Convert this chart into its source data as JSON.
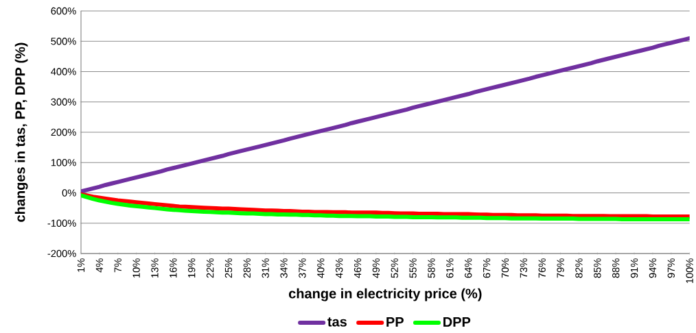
{
  "chart_data": {
    "type": "line",
    "xlabel": "change in electricity price (%)",
    "ylabel": "changes in tas, PP, DPP (%)",
    "categories": [
      "1%",
      null,
      null,
      "4%",
      null,
      null,
      "7%",
      null,
      null,
      "10%",
      null,
      null,
      "13%",
      null,
      null,
      "16%",
      null,
      null,
      "19%",
      null,
      null,
      "22%",
      null,
      null,
      "25%",
      null,
      null,
      "28%",
      null,
      null,
      "31%",
      null,
      null,
      "34%",
      null,
      null,
      "37%",
      null,
      null,
      "40%",
      null,
      null,
      "43%",
      null,
      null,
      "46%",
      null,
      null,
      "49%",
      null,
      null,
      "52%",
      null,
      null,
      "55%",
      null,
      null,
      "58%",
      null,
      null,
      "61%",
      null,
      null,
      "64%",
      null,
      null,
      "67%",
      null,
      null,
      "70%",
      null,
      null,
      "73%",
      null,
      null,
      "76%",
      null,
      null,
      "79%",
      null,
      null,
      "82%",
      null,
      null,
      "85%",
      null,
      null,
      "88%",
      null,
      null,
      "91%",
      null,
      null,
      "94%",
      null,
      null,
      "97%",
      null,
      null,
      "100%"
    ],
    "series": [
      {
        "name": "tas",
        "color": "#7030a0",
        "values": [
          5,
          10,
          15,
          20,
          26,
          31,
          36,
          41,
          46,
          51,
          56,
          61,
          66,
          71,
          77,
          82,
          87,
          92,
          97,
          102,
          107,
          112,
          117,
          122,
          128,
          133,
          138,
          143,
          148,
          153,
          158,
          163,
          168,
          173,
          179,
          184,
          189,
          194,
          199,
          204,
          209,
          214,
          219,
          224,
          230,
          235,
          240,
          245,
          250,
          255,
          260,
          265,
          270,
          275,
          281,
          286,
          291,
          296,
          301,
          306,
          311,
          316,
          321,
          326,
          332,
          337,
          342,
          347,
          352,
          357,
          362,
          367,
          372,
          377,
          383,
          388,
          393,
          398,
          403,
          408,
          413,
          418,
          423,
          428,
          434,
          439,
          444,
          449,
          454,
          459,
          464,
          469,
          474,
          479,
          485,
          490,
          495,
          500,
          505,
          510
        ]
      },
      {
        "name": "PP",
        "color": "#ff0000",
        "values": [
          -5,
          -9,
          -13,
          -16,
          -19,
          -22,
          -25,
          -27,
          -29,
          -31,
          -33,
          -35,
          -37,
          -39,
          -41,
          -43,
          -45,
          -46,
          -47,
          -48,
          -49,
          -50,
          -51,
          -52,
          -52,
          -53,
          -54,
          -55,
          -56,
          -57,
          -58,
          -58,
          -59,
          -60,
          -60,
          -61,
          -62,
          -62,
          -63,
          -63,
          -63,
          -64,
          -64,
          -64,
          -65,
          -65,
          -65,
          -65,
          -65,
          -66,
          -66,
          -67,
          -68,
          -68,
          -68,
          -69,
          -69,
          -69,
          -69,
          -70,
          -70,
          -70,
          -70,
          -70,
          -71,
          -72,
          -72,
          -73,
          -73,
          -73,
          -73,
          -74,
          -74,
          -74,
          -74,
          -75,
          -75,
          -75,
          -75,
          -75,
          -76,
          -76,
          -76,
          -76,
          -76,
          -76,
          -77,
          -77,
          -77,
          -77,
          -77,
          -77,
          -77,
          -78,
          -78,
          -78,
          -78,
          -78,
          -78,
          -78
        ]
      },
      {
        "name": "DPP",
        "color": "#00ff00",
        "values": [
          -8,
          -14,
          -20,
          -25,
          -29,
          -33,
          -36,
          -39,
          -42,
          -44,
          -46,
          -48,
          -50,
          -52,
          -54,
          -56,
          -57,
          -59,
          -60,
          -61,
          -62,
          -63,
          -64,
          -65,
          -65,
          -66,
          -67,
          -68,
          -68,
          -69,
          -70,
          -70,
          -71,
          -71,
          -72,
          -72,
          -73,
          -73,
          -74,
          -74,
          -75,
          -75,
          -76,
          -76,
          -76,
          -77,
          -77,
          -77,
          -78,
          -78,
          -78,
          -79,
          -79,
          -79,
          -80,
          -80,
          -80,
          -80,
          -81,
          -81,
          -81,
          -81,
          -82,
          -82,
          -82,
          -82,
          -83,
          -83,
          -83,
          -83,
          -84,
          -84,
          -84,
          -84,
          -84,
          -85,
          -85,
          -85,
          -85,
          -85,
          -85,
          -86,
          -86,
          -86,
          -86,
          -86,
          -86,
          -86,
          -87,
          -87,
          -87,
          -87,
          -87,
          -87,
          -87,
          -87,
          -87,
          -87,
          -87,
          -87
        ]
      }
    ],
    "ylim": [
      -200,
      600
    ],
    "yticks": [
      {
        "value": -200,
        "label": "-200%"
      },
      {
        "value": -100,
        "label": "-100%"
      },
      {
        "value": 0,
        "label": "0%"
      },
      {
        "value": 100,
        "label": "100%"
      },
      {
        "value": 200,
        "label": "200%"
      },
      {
        "value": 300,
        "label": "300%"
      },
      {
        "value": 400,
        "label": "400%"
      },
      {
        "value": 500,
        "label": "500%"
      },
      {
        "value": 600,
        "label": "600%"
      }
    ],
    "grid": "y",
    "legend": "bottom"
  }
}
